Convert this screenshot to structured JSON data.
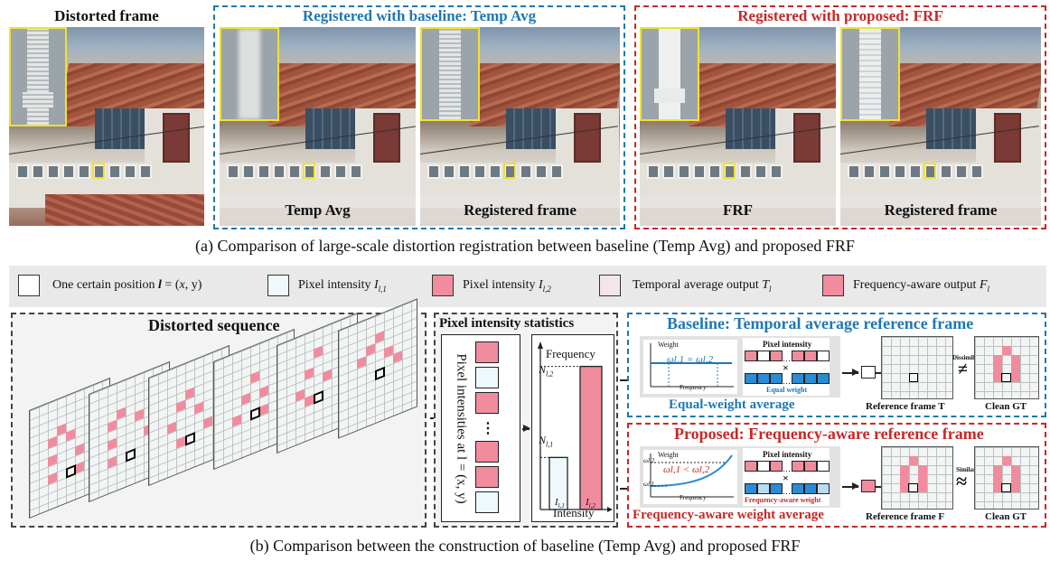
{
  "part_a": {
    "distorted_title": "Distorted frame",
    "baseline_title": "Registered with baseline: Temp Avg",
    "proposed_title": "Registered with proposed: FRF",
    "labels": [
      "Temp Avg",
      "Registered frame",
      "FRF",
      "Registered frame"
    ],
    "caption": "(a)  Comparison of  large-scale distortion registration between baseline (Temp Avg) and proposed FRF",
    "colors": {
      "baseline": "#1f77b4",
      "proposed": "#c62828",
      "highlight": "#f1e22c"
    }
  },
  "legend": {
    "items": [
      {
        "text": "One certain position",
        "math": "l = (x, y)"
      },
      {
        "text": "Pixel intensity",
        "math": "I",
        "sub": "l,1"
      },
      {
        "text": "Pixel intensity",
        "math": "I",
        "sub": "l,2"
      },
      {
        "text": "Temporal average output",
        "math": "T",
        "sub": "l"
      },
      {
        "text": "Frequency-aware output",
        "math": "F",
        "sub": "l"
      }
    ],
    "colors": {
      "pixel1": "#eef9fd",
      "pixel2": "#f08c9e",
      "temporal": "#f3e6e8",
      "freq": "#f08c9e"
    }
  },
  "part_b": {
    "seq_title": "Distorted sequence",
    "ellipsis": "•••",
    "stats_title": "Pixel intensity statistics",
    "stats_vertical": "Pixel intensities at l = (x, y)",
    "hist": {
      "ylabel": "Frequency",
      "xlabel": "Intensity",
      "n2": "N",
      "n2sub": "l,2",
      "n1": "N",
      "n1sub": "l,1",
      "x1": "I",
      "x1sub": "l,1",
      "x2": "I",
      "x2sub": "l,2",
      "n1_value": 0.32,
      "n2_value": 0.88
    },
    "baseline": {
      "title": "Baseline: Temporal average reference frame",
      "weight": "Weight",
      "eq": "ωl,1 = ωl,2",
      "pixel_intensity": "Pixel intensity",
      "equal_weight": "Equal weight",
      "subtitle": "Equal-weight average",
      "ref": "Reference frame T",
      "gt": "Clean GT",
      "dissimilar": "Dissimilar",
      "sym": "≠",
      "freq_axis": "Frequency"
    },
    "proposed": {
      "title": "Proposed: Frequency-aware reference frame",
      "weight": "Weight",
      "eq": "ωl,1 < ωl,2",
      "pixel_intensity": "Pixel intensity",
      "freq_weight": "Frequency-aware weight",
      "subtitle": "Frequency-aware weight average",
      "ref": "Reference frame F",
      "gt": "Clean GT",
      "similar": "Similar",
      "sym": "≈",
      "freq_axis": "Frequency",
      "w1": "ωl,1",
      "w2": "ωl,2"
    },
    "caption": "(b)  Comparison between the construction of baseline (Temp Avg) and  proposed FRF"
  }
}
